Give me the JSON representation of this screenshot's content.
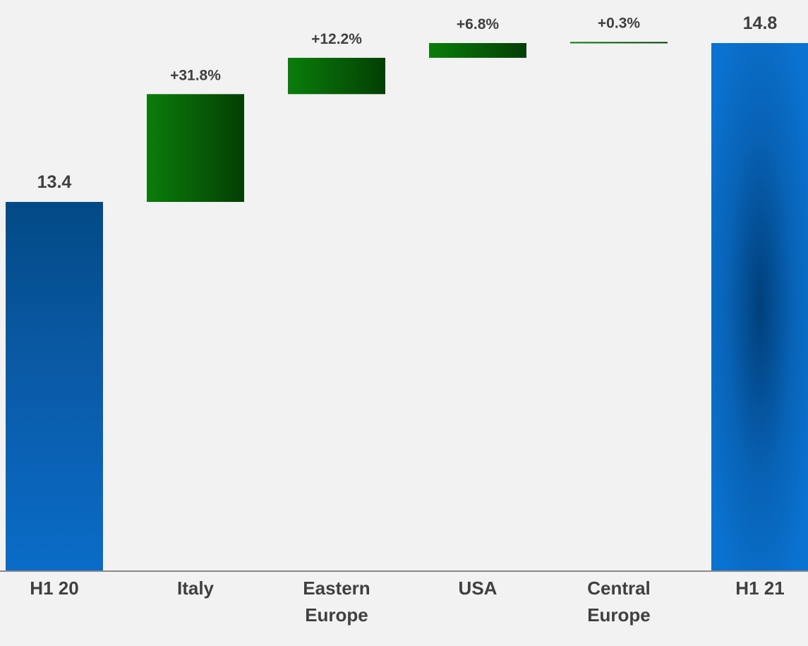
{
  "chart_data": {
    "type": "waterfall",
    "categories": [
      "H1 20",
      "Italy",
      "Eastern Europe",
      "USA",
      "Central Europe",
      "H1 21"
    ],
    "category_lines": [
      [
        "H1 20"
      ],
      [
        "Italy"
      ],
      [
        "Eastern",
        "Europe"
      ],
      [
        "USA"
      ],
      [
        "Central",
        "Europe"
      ],
      [
        "H1 21"
      ]
    ],
    "steps": [
      {
        "category": "H1 20",
        "kind": "total",
        "start": 0,
        "end": 13.4,
        "label": "13.4"
      },
      {
        "category": "Italy",
        "kind": "increase",
        "start": 13.4,
        "end": 14.35,
        "label": "+31.8%"
      },
      {
        "category": "Eastern Europe",
        "kind": "increase",
        "start": 14.35,
        "end": 14.67,
        "label": "+12.2%"
      },
      {
        "category": "USA",
        "kind": "increase",
        "start": 14.67,
        "end": 14.8,
        "label": "+6.8%"
      },
      {
        "category": "Central Europe",
        "kind": "increase",
        "start": 14.8,
        "end": 14.81,
        "label": "+0.3%"
      },
      {
        "category": "H1 21",
        "kind": "total",
        "start": 0,
        "end": 14.8,
        "label": "14.8"
      }
    ],
    "axis_break": {
      "real_min": 13.4,
      "real_max": 14.8
    },
    "colors": {
      "total": "#0a5fb0",
      "increase": "#0b6e0b",
      "axis": "#8a8a8a",
      "text": "#404040",
      "background": "#f2f2f2"
    },
    "grid": false,
    "legend": "none"
  }
}
